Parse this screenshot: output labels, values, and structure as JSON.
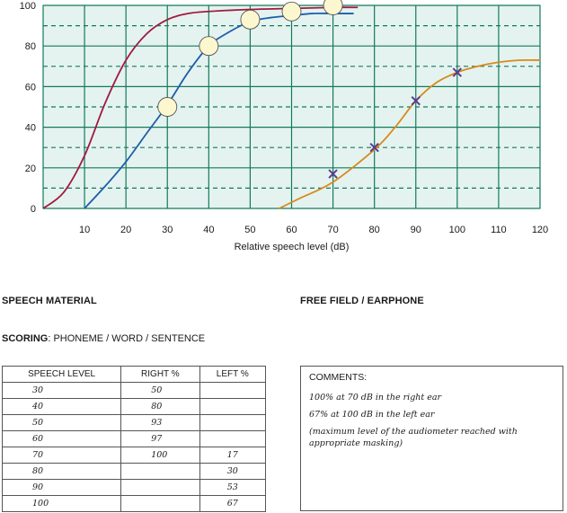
{
  "chart_data": {
    "type": "line",
    "xlabel": "Relative speech level (dB)",
    "xlim": [
      0,
      120
    ],
    "ylim": [
      0,
      100
    ],
    "x_ticks": [
      10,
      20,
      30,
      40,
      50,
      60,
      70,
      80,
      90,
      100,
      110,
      120
    ],
    "y_ticks": [
      0,
      20,
      40,
      60,
      80,
      100
    ],
    "grid": true,
    "colors": {
      "plot_bg": "#e4f3f0",
      "grid": "#147a5a",
      "normal_curve": "#a01b3f",
      "right_curve": "#1f5ea8",
      "left_curve": "#d88a1c",
      "right_marker_fill": "#fdf7cf",
      "left_marker": "#5a3c8c"
    },
    "series": [
      {
        "marker": "none",
        "x": [
          0,
          5,
          10,
          15,
          20,
          25,
          30,
          35,
          40,
          50,
          60,
          70,
          76
        ],
        "y": [
          0,
          8,
          26,
          52,
          73,
          86,
          93,
          96,
          97,
          98,
          98.5,
          99,
          99
        ]
      },
      {
        "marker": "circle",
        "x": [
          10,
          15,
          20,
          25,
          30,
          35,
          40,
          45,
          50,
          55,
          60,
          65,
          70,
          75
        ],
        "y": [
          0,
          11,
          23,
          37,
          51,
          67,
          80,
          87,
          92,
          94,
          95,
          96,
          96,
          96
        ],
        "points": {
          "x": [
            30,
            40,
            50,
            60,
            70
          ],
          "y": [
            50,
            80,
            93,
            97,
            100
          ]
        }
      },
      {
        "marker": "x",
        "x": [
          57,
          62,
          70,
          80,
          85,
          90,
          95,
          100,
          105,
          110,
          115,
          120
        ],
        "y": [
          0,
          5,
          13,
          29,
          40,
          53,
          62,
          67,
          70,
          72,
          73,
          73
        ],
        "points": {
          "x": [
            70,
            80,
            90,
            100
          ],
          "y": [
            17,
            30,
            53,
            67
          ]
        }
      }
    ]
  },
  "sections": {
    "speech_material": "SPEECH MATERIAL",
    "free_field": "FREE FIELD / EARPHONE",
    "scoring_label": "SCORING",
    "scoring_value": ": PHONEME / WORD / SENTENCE"
  },
  "table": {
    "headers": [
      "SPEECH LEVEL",
      "RIGHT %",
      "LEFT %"
    ],
    "rows": [
      [
        "30",
        "50",
        ""
      ],
      [
        "40",
        "80",
        ""
      ],
      [
        "50",
        "93",
        ""
      ],
      [
        "60",
        "97",
        ""
      ],
      [
        "70",
        "100",
        "17"
      ],
      [
        "80",
        "",
        "30"
      ],
      [
        "90",
        "",
        "53"
      ],
      [
        "100",
        "",
        "67"
      ]
    ]
  },
  "comments": {
    "title": "COMMENTS:",
    "lines": [
      "100% at 70 dB in the right ear",
      "67% at 100 dB in the left ear",
      "(maximum level of the audiometer reached with appropriate masking)"
    ]
  }
}
